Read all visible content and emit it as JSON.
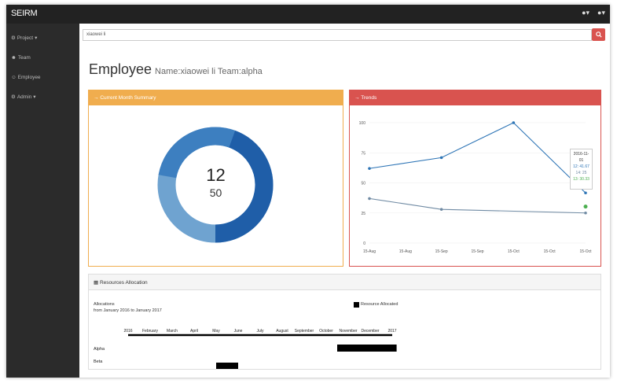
{
  "app": {
    "brand": "SEIRM"
  },
  "topbar": {
    "icons": [
      "user-icon",
      "user-icon"
    ],
    "caret": "▾"
  },
  "sidebar": {
    "items": [
      {
        "label": "Project",
        "icon": "project-icon",
        "caret": "▾"
      },
      {
        "label": "Team",
        "icon": "team-icon",
        "caret": ""
      },
      {
        "label": "Employee",
        "icon": "employee-icon",
        "caret": ""
      },
      {
        "label": "Admin",
        "icon": "admin-icon",
        "caret": "▾"
      }
    ]
  },
  "search": {
    "value": "xiaowei li",
    "icon": "search-icon"
  },
  "page": {
    "title": "Employee",
    "subtitle": "Name:xiaowei li Team:alpha"
  },
  "summary": {
    "header": "Current Month Summary",
    "value_top": "12",
    "value_bottom": "50"
  },
  "trends": {
    "header": "Trends"
  },
  "chart_data": {
    "type": "line",
    "x": [
      "15-Aug",
      "15-Aug",
      "15-Sep",
      "15-Sep",
      "15-Oct",
      "15-Oct",
      "15-Oct"
    ],
    "yticks": [
      "100",
      "75",
      "50",
      "25",
      "0"
    ],
    "ylim": [
      0,
      100
    ],
    "series": [
      {
        "color": "#2e75b6",
        "points": [
          [
            0,
            62
          ],
          [
            2,
            71
          ],
          [
            4,
            100
          ],
          [
            6,
            41.67
          ]
        ]
      },
      {
        "color": "#6f8aa3",
        "points": [
          [
            0,
            37
          ],
          [
            2,
            28
          ],
          [
            6,
            25
          ]
        ]
      }
    ],
    "tooltip": {
      "date": "2016-11-01",
      "lines": [
        {
          "text": "12: 41.67",
          "color": "#2e75b6"
        },
        {
          "text": "14: 25",
          "color": "#6f8aa3"
        },
        {
          "text": "13: 30.33",
          "color": "#4caf50"
        }
      ]
    }
  },
  "resources": {
    "header": "Resources Allocation",
    "label_allocations": "Allocations",
    "label_range": "from January 2016 to January 2017",
    "legend": "Resource Allocated",
    "months": [
      "2016",
      "February",
      "March",
      "April",
      "May",
      "June",
      "July",
      "August",
      "September",
      "October",
      "November",
      "December",
      "2017"
    ],
    "teams": [
      {
        "name": "Alpha",
        "start_month": 9.5,
        "end_month": 12.2
      },
      {
        "name": "Beta",
        "start_month": 4.0,
        "end_month": 5.0
      }
    ]
  }
}
